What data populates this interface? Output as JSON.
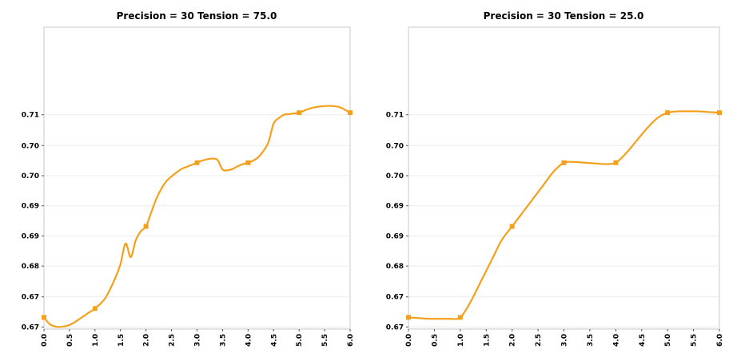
{
  "chart_data": [
    {
      "type": "line",
      "title": "Precision = 30  Tension = 75.0",
      "xlabel": "",
      "ylabel": "",
      "xlim": [
        0.0,
        6.0
      ],
      "ylim": [
        0.6695,
        0.7136
      ],
      "x_ticks": [
        0.0,
        0.5,
        1.0,
        1.5,
        2.0,
        2.5,
        3.0,
        3.5,
        4.0,
        4.5,
        5.0,
        5.5,
        6.0
      ],
      "x_tick_labels": [
        "0.0",
        "0.5",
        "1.0",
        "1.5",
        "2.0",
        "2.5",
        "3.0",
        "3.5",
        "4.0",
        "4.5",
        "5.0",
        "5.5",
        "6.0"
      ],
      "y_ticks": [
        0.6698,
        0.6742,
        0.6787,
        0.6831,
        0.6875,
        0.6919,
        0.6963,
        0.7008
      ],
      "y_tick_labels": [
        "0.67",
        "0.67",
        "0.68",
        "0.69",
        "0.69",
        "0.70",
        "0.70",
        "0.71"
      ],
      "grid": true,
      "line_color": "#f5a01a",
      "series": [
        {
          "x": [
            0,
            1,
            2,
            3,
            4,
            5,
            6
          ],
          "y": [
            0.6712,
            0.6725,
            0.6845,
            0.6938,
            0.6938,
            0.7011,
            0.7011
          ]
        }
      ],
      "curve": {
        "x": [
          0.0,
          0.1,
          0.2,
          0.3,
          0.4,
          0.5,
          0.6,
          0.7,
          0.8,
          0.9,
          1.0,
          1.2,
          1.4,
          1.5,
          1.6,
          1.7,
          1.8,
          1.9,
          2.0,
          2.1,
          2.2,
          2.3,
          2.4,
          2.5,
          2.6,
          2.7,
          2.8,
          2.9,
          3.0,
          3.1,
          3.2,
          3.3,
          3.4,
          3.5,
          3.6,
          3.7,
          3.8,
          3.9,
          4.0,
          4.1,
          4.2,
          4.3,
          4.4,
          4.5,
          4.6,
          4.7,
          4.8,
          4.9,
          5.0,
          5.2,
          5.4,
          5.6,
          5.8,
          6.0
        ],
        "y": [
          0.6712,
          0.6703,
          0.6699,
          0.6698,
          0.6699,
          0.6701,
          0.6705,
          0.671,
          0.6715,
          0.672,
          0.6725,
          0.674,
          0.677,
          0.679,
          0.682,
          0.68,
          0.6825,
          0.6838,
          0.6845,
          0.6865,
          0.6885,
          0.69,
          0.6911,
          0.6918,
          0.6924,
          0.6929,
          0.6932,
          0.6935,
          0.6938,
          0.6941,
          0.6943,
          0.6944,
          0.6942,
          0.6928,
          0.6927,
          0.6929,
          0.6933,
          0.6936,
          0.6938,
          0.6941,
          0.6946,
          0.6955,
          0.6968,
          0.6995,
          0.7003,
          0.7008,
          0.7009,
          0.701,
          0.7011,
          0.7017,
          0.702,
          0.7021,
          0.7019,
          0.7011
        ]
      }
    },
    {
      "type": "line",
      "title": "Precision = 30  Tension = 25.0",
      "xlabel": "",
      "ylabel": "",
      "xlim": [
        0.0,
        6.0
      ],
      "ylim": [
        0.6695,
        0.7136
      ],
      "x_ticks": [
        0.0,
        0.5,
        1.0,
        1.5,
        2.0,
        2.5,
        3.0,
        3.5,
        4.0,
        4.5,
        5.0,
        5.5,
        6.0
      ],
      "x_tick_labels": [
        "0.0",
        "0.5",
        "1.0",
        "1.5",
        "2.0",
        "2.5",
        "3.0",
        "3.5",
        "4.0",
        "4.5",
        "5.0",
        "5.5",
        "6.0"
      ],
      "y_ticks": [
        0.6698,
        0.6742,
        0.6787,
        0.6831,
        0.6875,
        0.6919,
        0.6963,
        0.7008
      ],
      "y_tick_labels": [
        "0.67",
        "0.67",
        "0.68",
        "0.69",
        "0.69",
        "0.70",
        "0.70",
        "0.71"
      ],
      "grid": true,
      "line_color": "#f5a01a",
      "series": [
        {
          "x": [
            0,
            1,
            2,
            3,
            4,
            5,
            6
          ],
          "y": [
            0.6712,
            0.6712,
            0.6845,
            0.6938,
            0.6938,
            0.7011,
            0.7011
          ]
        }
      ],
      "curve": {
        "x": [
          0.0,
          0.2,
          0.4,
          0.6,
          0.8,
          1.0,
          1.2,
          1.4,
          1.6,
          1.8,
          2.0,
          2.2,
          2.4,
          2.6,
          2.8,
          3.0,
          3.2,
          3.4,
          3.6,
          3.8,
          4.0,
          4.2,
          4.4,
          4.6,
          4.8,
          5.0,
          5.2,
          5.4,
          5.6,
          5.8,
          6.0
        ],
        "y": [
          0.6712,
          0.6711,
          0.671,
          0.671,
          0.671,
          0.6712,
          0.6735,
          0.6765,
          0.6795,
          0.6825,
          0.6845,
          0.6865,
          0.6885,
          0.6905,
          0.6925,
          0.6938,
          0.6939,
          0.6938,
          0.6937,
          0.6936,
          0.6938,
          0.6952,
          0.697,
          0.6988,
          0.7003,
          0.7011,
          0.7013,
          0.7013,
          0.7013,
          0.7012,
          0.7011
        ]
      }
    }
  ]
}
